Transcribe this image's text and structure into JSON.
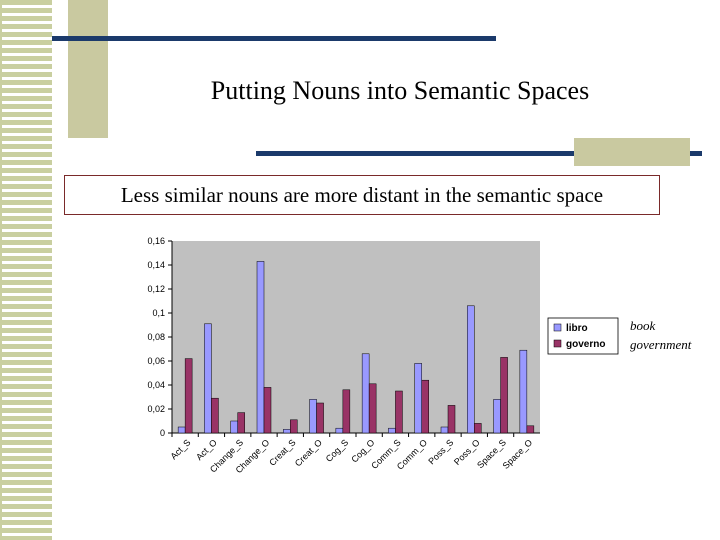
{
  "slide": {
    "title": "Putting Nouns into Semantic Spaces",
    "subtitle": "Less similar nouns are more distant in the semantic space",
    "translations": [
      "book",
      "government"
    ]
  },
  "colors": {
    "libro": "#9999ff",
    "governo": "#993366",
    "plot_bg": "#c0c0c0",
    "accent_line": "#1b3a6b",
    "accent_block": "#c9c9a0"
  },
  "chart_data": {
    "type": "bar",
    "categories": [
      "Act_S",
      "Act_O",
      "Change_S",
      "Change_O",
      "Creat_S",
      "Creat_O",
      "Cog_S",
      "Cog_O",
      "Comm_S",
      "Comm_O",
      "Poss_S",
      "Poss_O",
      "Space_S",
      "Space_O"
    ],
    "series": [
      {
        "name": "libro",
        "values": [
          0.005,
          0.091,
          0.01,
          0.143,
          0.003,
          0.028,
          0.004,
          0.066,
          0.004,
          0.058,
          0.005,
          0.106,
          0.028,
          0.069
        ]
      },
      {
        "name": "governo",
        "values": [
          0.062,
          0.029,
          0.017,
          0.038,
          0.011,
          0.025,
          0.036,
          0.041,
          0.035,
          0.044,
          0.023,
          0.008,
          0.063,
          0.006
        ]
      }
    ],
    "yticks": [
      "0",
      "0,02",
      "0,04",
      "0,06",
      "0,08",
      "0,1",
      "0,12",
      "0,14",
      "0,16"
    ],
    "ylim": [
      0,
      0.16
    ],
    "grid": false,
    "legend": "right"
  }
}
